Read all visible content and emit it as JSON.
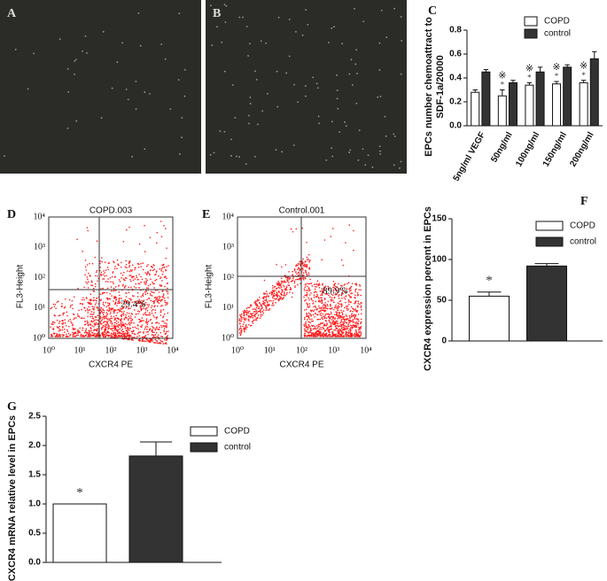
{
  "figure": {
    "micrographs": [
      {
        "letter": "A"
      },
      {
        "letter": "B"
      }
    ],
    "flow_plots": [
      {
        "letter": "D",
        "title": "COPD.003",
        "ylabel": "FL3-Height",
        "xlabel": "CXCR4 PE",
        "percent": "29.4%",
        "xticks": [
          "10⁰",
          "10¹",
          "10²",
          "10³",
          "10⁴"
        ],
        "yticks": [
          "10⁰",
          "10¹",
          "10²",
          "10³",
          "10⁴"
        ]
      },
      {
        "letter": "E",
        "title": "Control.001",
        "ylabel": "FL3-Height",
        "xlabel": "CXCR4 PE",
        "percent": "89.9%",
        "xticks": [
          "10⁰",
          "10¹",
          "10²",
          "10³",
          "10⁴"
        ],
        "yticks": [
          "10⁰",
          "10¹",
          "10²",
          "10³",
          "10⁴"
        ]
      }
    ]
  },
  "chart_data": [
    {
      "type": "bar",
      "letter": "C",
      "ylabel": [
        "EPCs number chemoattract to",
        "SDF-1a/20000"
      ],
      "categories": [
        "5ng/ml VEGF",
        "50ng/ml",
        "100ng/ml",
        "150ng/ml",
        "200ng/ml"
      ],
      "series": [
        {
          "name": "COPD",
          "color": "#ffffff",
          "values": [
            0.28,
            0.25,
            0.34,
            0.35,
            0.36
          ],
          "errors": [
            0.02,
            0.05,
            0.02,
            0.02,
            0.02
          ],
          "significance": [
            null,
            "*",
            "*",
            "*",
            "*"
          ],
          "comparison": [
            null,
            "※",
            "※",
            "※",
            "※"
          ]
        },
        {
          "name": "control",
          "color": "#333333",
          "values": [
            0.45,
            0.36,
            0.45,
            0.49,
            0.56
          ],
          "errors": [
            0.02,
            0.02,
            0.04,
            0.02,
            0.06
          ]
        }
      ],
      "ylim": [
        0,
        0.8
      ],
      "yticks": [
        {
          "value": 0,
          "label": "0.0"
        },
        {
          "value": 0.2,
          "label": "0.2"
        },
        {
          "value": 0.4,
          "label": "0.4"
        },
        {
          "value": 0.6,
          "label": "0.6"
        },
        {
          "value": 0.8,
          "label": "0.8"
        }
      ]
    },
    {
      "type": "bar",
      "letter": "F",
      "ylabel": [
        "CXCR4 expression percent  in EPCs"
      ],
      "categories": [
        null
      ],
      "series": [
        {
          "name": "COPD",
          "color": "#ffffff",
          "values": [
            55
          ],
          "errors": [
            5
          ],
          "significance": [
            "*"
          ]
        },
        {
          "name": "control",
          "color": "#333333",
          "values": [
            92
          ],
          "errors": [
            3
          ]
        }
      ],
      "ylim": [
        0,
        150
      ],
      "yticks": [
        0,
        50,
        100,
        150
      ]
    },
    {
      "type": "bar",
      "letter": "G",
      "ylabel": [
        "CXCR4 mRNA relative level  in EPCs"
      ],
      "categories": [
        null
      ],
      "series": [
        {
          "name": "COPD",
          "color": "#ffffff",
          "values": [
            1.0
          ],
          "errors": [
            0
          ],
          "significance": [
            "*"
          ]
        },
        {
          "name": "control",
          "color": "#333333",
          "values": [
            1.82
          ],
          "errors": [
            0.24
          ]
        }
      ],
      "ylim": [
        0,
        2.5
      ],
      "yticks": [
        {
          "value": 0,
          "label": "0.0"
        },
        {
          "value": 0.5,
          "label": "0.5"
        },
        {
          "value": 1,
          "label": "1.0"
        },
        {
          "value": 1.5,
          "label": "1.5"
        },
        {
          "value": 2,
          "label": "2.0"
        },
        {
          "value": 2.5,
          "label": "2.5"
        }
      ]
    }
  ]
}
